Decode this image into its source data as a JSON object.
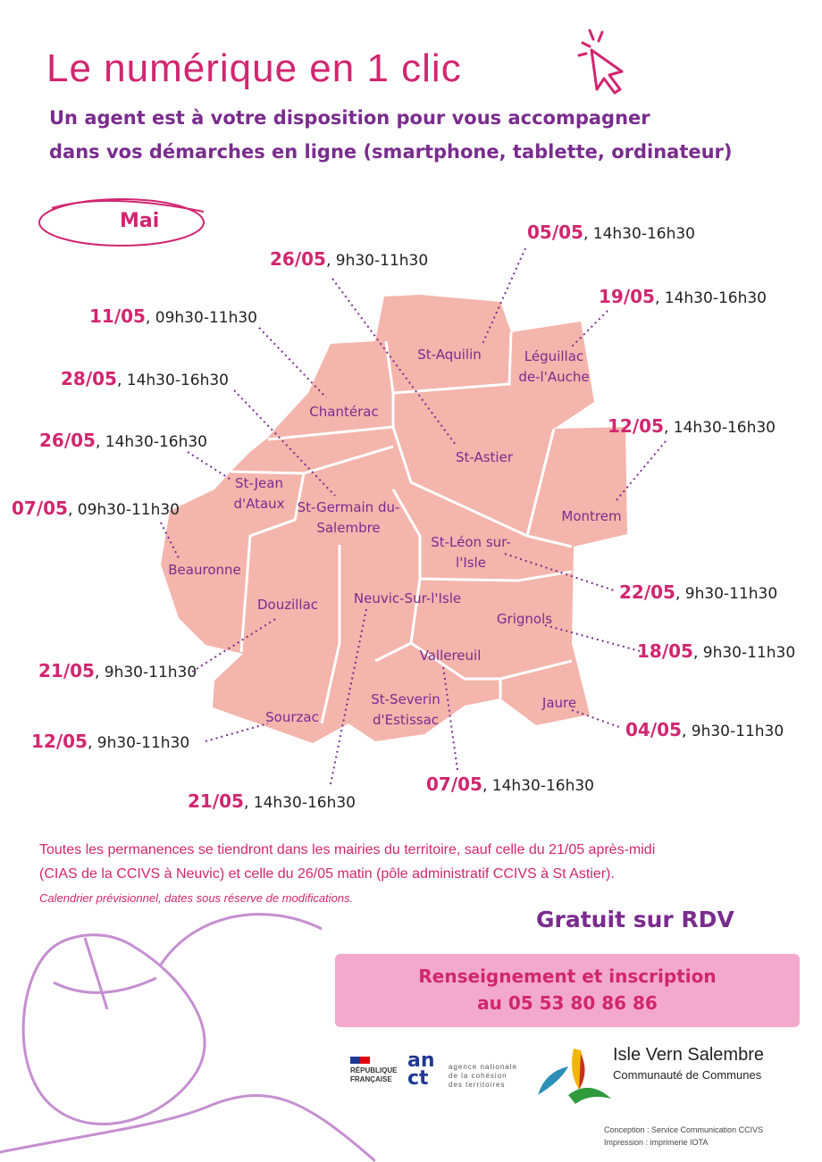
{
  "header": {
    "title": "Le numérique en 1 clic",
    "subtitle_line1": "Un agent est à votre disposition pour vous accompagner",
    "subtitle_line2": "dans vos démarches en ligne (smartphone, tablette, ordinateur)",
    "month": "Mai"
  },
  "communes": [
    {
      "name": "St-Aquilin",
      "date": "05/05",
      "time": ", 14h30-16h30"
    },
    {
      "name": "Léguillac de-l'Auche",
      "date": "19/05",
      "time": ", 14h30-16h30"
    },
    {
      "name": "Chantérac",
      "date": "11/05",
      "time": ", 09h30-11h30"
    },
    {
      "name": "St-Astier",
      "date": "26/05",
      "time": ", 9h30-11h30"
    },
    {
      "name": "Montrem",
      "date": "12/05",
      "time": ", 14h30-16h30"
    },
    {
      "name": "St-Jean d'Ataux",
      "date": "26/05",
      "time": ", 14h30-16h30"
    },
    {
      "name": "St-Germain du-Salembre",
      "date": "28/05",
      "time": ", 14h30-16h30"
    },
    {
      "name": "Beauronne",
      "date": "07/05",
      "time": ", 09h30-11h30"
    },
    {
      "name": "St-Léon sur-l'Isle",
      "date": "22/05",
      "time": ", 9h30-11h30"
    },
    {
      "name": "Douzillac",
      "date": "21/05",
      "time": ", 9h30-11h30"
    },
    {
      "name": "Neuvic-Sur-l'Isle",
      "date": "21/05",
      "time": ", 14h30-16h30"
    },
    {
      "name": "Grignols",
      "date": "18/05",
      "time": ", 9h30-11h30"
    },
    {
      "name": "Vallereuil",
      "date": "07/05",
      "time": ", 14h30-16h30"
    },
    {
      "name": "Sourzac",
      "date": "12/05",
      "time": ", 9h30-11h30"
    },
    {
      "name": "Jaure",
      "date": "04/05",
      "time": ", 9h30-11h30"
    },
    {
      "name": "St-Severin d'Estissac"
    }
  ],
  "notes": {
    "line1": "Toutes les permanences se tiendront dans les mairies du territoire, sauf celle du 21/05 après-midi",
    "line2": "(CIAS de la CCIVS à Neuvic) et celle du 26/05 matin (pôle administratif CCIVS à St Astier).",
    "disclaimer": "Calendrier prévisionnel, dates sous réserve de modifications."
  },
  "cta": {
    "free": "Gratuit sur RDV",
    "line1": "Renseignement et inscription",
    "line2": "au 05 53 80 86 86"
  },
  "footer": {
    "rf_line1": "RÉPUBLIQUE",
    "rf_line2": "FRANÇAISE",
    "anct_logo": "an ct",
    "anct_text1": "agence nationale",
    "anct_text2": "de la cohésion",
    "anct_text3": "des territoires",
    "ivs_title": "Isle Vern Salembre",
    "ivs_sub": "Communauté de Communes",
    "credit1": "Conception : Service Communication CCIVS",
    "credit2": "Impression : imprimerie IOTA"
  },
  "colors": {
    "pink": "#d1266f",
    "purple": "#7a2c8e",
    "map": "#f4b5ac",
    "banner": "#f3a9cb"
  }
}
